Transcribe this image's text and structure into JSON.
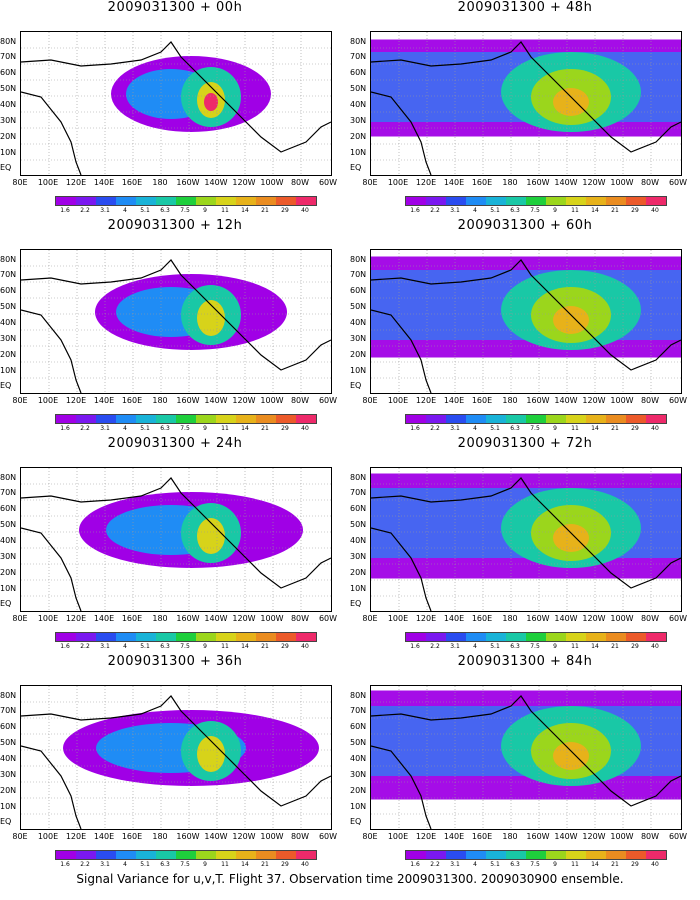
{
  "panels": [
    {
      "title": "2009031300 + 00h"
    },
    {
      "title": "2009031300 + 48h"
    },
    {
      "title": "2009031300 + 12h"
    },
    {
      "title": "2009031300 + 60h"
    },
    {
      "title": "2009031300 + 24h"
    },
    {
      "title": "2009031300 + 72h"
    },
    {
      "title": "2009031300 + 36h"
    },
    {
      "title": "2009031300 + 84h"
    }
  ],
  "lat_labels": [
    "80N",
    "70N",
    "60N",
    "50N",
    "40N",
    "30N",
    "20N",
    "10N",
    "EQ"
  ],
  "lon_labels": [
    "80E",
    "100E",
    "120E",
    "140E",
    "160E",
    "180",
    "160W",
    "140W",
    "120W",
    "100W",
    "80W",
    "60W"
  ],
  "colorbar": {
    "colors": [
      "#a000e6",
      "#7a18f0",
      "#2a4cf0",
      "#1f8cf5",
      "#19b3d8",
      "#19c8a6",
      "#1ecf3c",
      "#9bd61c",
      "#d7d31a",
      "#e7b21a",
      "#ea8c20",
      "#ec5a2a",
      "#ee2a6a"
    ],
    "ticks": [
      "1.6",
      "2.2",
      "3.1",
      "4",
      "5.1",
      "6.3",
      "7.5",
      "9",
      "11",
      "14",
      "21",
      "29",
      "40"
    ]
  },
  "caption": "Signal Variance for u,v,T. Flight 37. Observation time 2009031300. 2009030900 ensemble."
}
